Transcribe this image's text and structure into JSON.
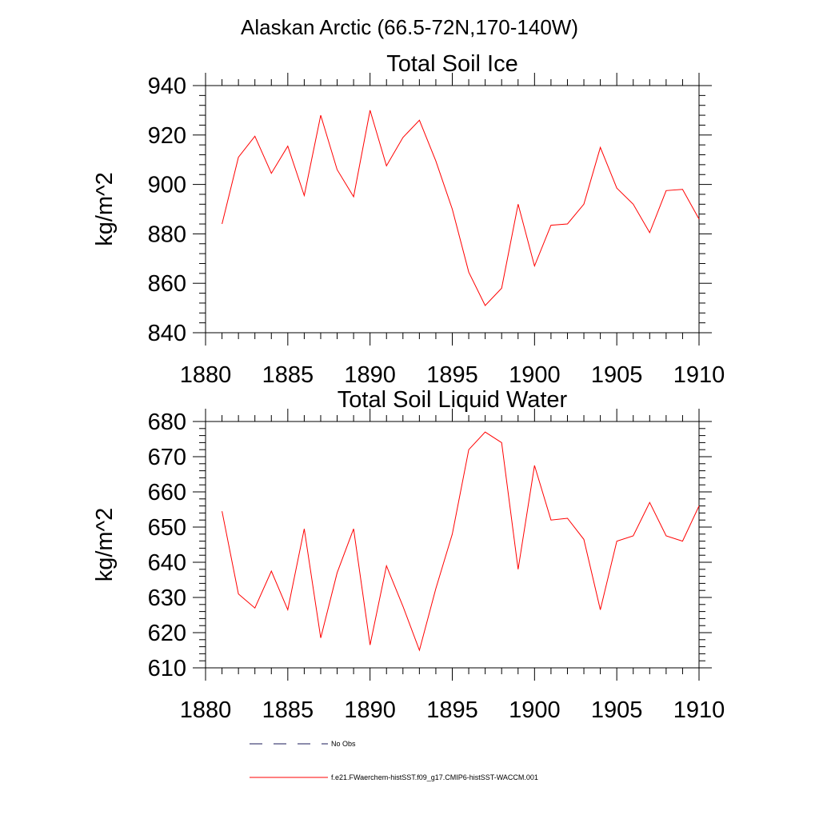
{
  "figure": {
    "title": "Alaskan Arctic (66.5-72N,170-140W)"
  },
  "chart_data": [
    {
      "type": "line",
      "title": "Total Soil Ice",
      "xlabel": "",
      "ylabel": "kg/m^2",
      "xlim": [
        1880,
        1910
      ],
      "ylim": [
        840,
        940
      ],
      "xticks": [
        1880,
        1885,
        1890,
        1895,
        1900,
        1905,
        1910
      ],
      "yticks": [
        840,
        860,
        880,
        900,
        920,
        940
      ],
      "grid": false,
      "series": [
        {
          "name": "f.e21.FWaerchem-histSST.f09_g17.CMIP6-histSST-WACCM.001",
          "color": "#ff0000",
          "x": [
            1881,
            1882,
            1883,
            1884,
            1885,
            1886,
            1887,
            1888,
            1889,
            1890,
            1891,
            1892,
            1893,
            1894,
            1895,
            1896,
            1897,
            1898,
            1899,
            1900,
            1901,
            1902,
            1903,
            1904,
            1905,
            1906,
            1907,
            1908,
            1909,
            1910
          ],
          "y": [
            884,
            911,
            919.5,
            904.5,
            915.5,
            895.5,
            928,
            906,
            895,
            930,
            907.5,
            919,
            926,
            909.5,
            890,
            864.5,
            851,
            858,
            892,
            867,
            883.5,
            884,
            892,
            915,
            898.5,
            892,
            880.5,
            897.5,
            898,
            886
          ]
        }
      ]
    },
    {
      "type": "line",
      "title": "Total Soil Liquid Water",
      "xlabel": "",
      "ylabel": "kg/m^2",
      "xlim": [
        1880,
        1910
      ],
      "ylim": [
        610,
        680
      ],
      "xticks": [
        1880,
        1885,
        1890,
        1895,
        1900,
        1905,
        1910
      ],
      "yticks": [
        610,
        620,
        630,
        640,
        650,
        660,
        670,
        680
      ],
      "grid": false,
      "series": [
        {
          "name": "f.e21.FWaerchem-histSST.f09_g17.CMIP6-histSST-WACCM.001",
          "color": "#ff0000",
          "x": [
            1881,
            1882,
            1883,
            1884,
            1885,
            1886,
            1887,
            1888,
            1889,
            1890,
            1891,
            1892,
            1893,
            1894,
            1895,
            1896,
            1897,
            1898,
            1899,
            1900,
            1901,
            1902,
            1903,
            1904,
            1905,
            1906,
            1907,
            1908,
            1909,
            1910
          ],
          "y": [
            654.5,
            631,
            627,
            637.5,
            626.5,
            649.5,
            618.5,
            637,
            649.5,
            616.5,
            639,
            627.5,
            615,
            632.5,
            648,
            672,
            677,
            674,
            638,
            667.5,
            652,
            652.5,
            646.5,
            626.5,
            646,
            647.5,
            657,
            647.5,
            646,
            656
          ]
        }
      ]
    }
  ],
  "legend": {
    "placement": "bottom",
    "items": [
      {
        "label": "No Obs",
        "style": "dashed",
        "color": "#1a1a5a"
      },
      {
        "label": "f.e21.FWaerchem-histSST.f09_g17.CMIP6-histSST-WACCM.001",
        "style": "solid",
        "color": "#ff0000"
      }
    ]
  }
}
